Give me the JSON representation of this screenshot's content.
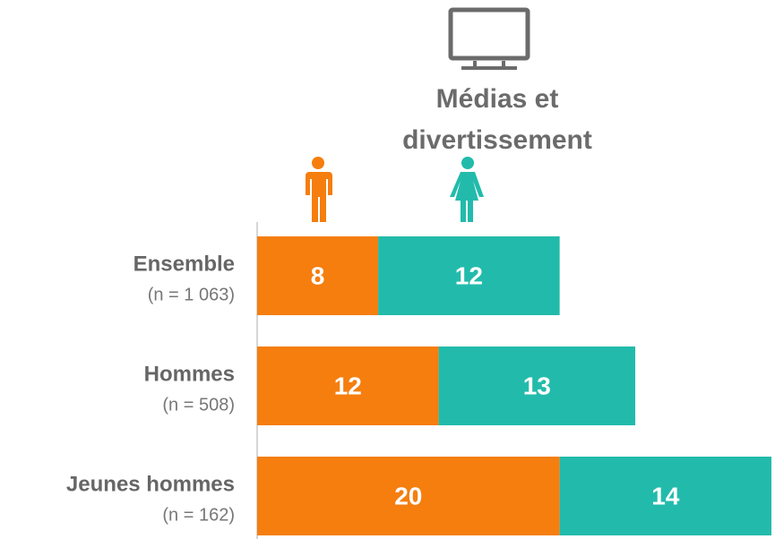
{
  "chart_data": {
    "type": "stacked-bar-horizontal",
    "title": "Médias et divertissement",
    "categories": [
      "Ensemble",
      "Hommes",
      "Jeunes hommes"
    ],
    "category_notes": [
      "(n = 1 063)",
      "(n = 508)",
      "(n = 162)"
    ],
    "series": [
      {
        "color": "#f57e0f",
        "values": [
          8,
          12,
          20
        ]
      },
      {
        "color": "#22bbab",
        "values": [
          12,
          13,
          14
        ]
      }
    ],
    "xlim": [
      0,
      34
    ]
  }
}
